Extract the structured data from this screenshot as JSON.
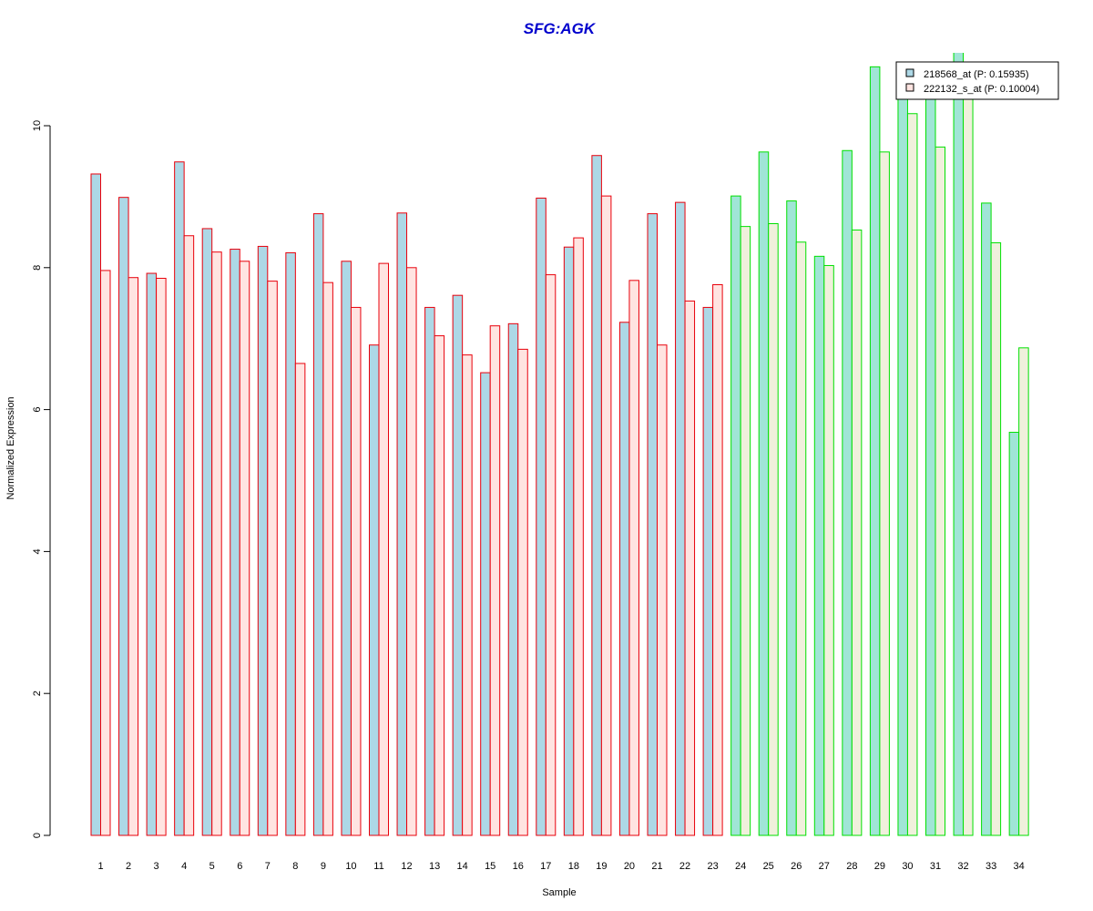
{
  "chart_data": {
    "type": "bar",
    "title": "SFG:AGK",
    "xlabel": "Sample",
    "ylabel": "Normalized Expression",
    "ylim": [
      0,
      11
    ],
    "yticks": [
      "0",
      "2",
      "4",
      "6",
      "8",
      "10"
    ],
    "categories": [
      "1",
      "2",
      "3",
      "4",
      "5",
      "6",
      "7",
      "8",
      "9",
      "10",
      "11",
      "12",
      "13",
      "14",
      "15",
      "16",
      "17",
      "18",
      "19",
      "20",
      "21",
      "22",
      "23",
      "24",
      "25",
      "26",
      "27",
      "28",
      "29",
      "30",
      "31",
      "32",
      "33",
      "34"
    ],
    "groups": [
      {
        "from_index": 0,
        "to_index": 22,
        "border_color": "#e8000b"
      },
      {
        "from_index": 23,
        "to_index": 33,
        "border_color": "#00e000"
      }
    ],
    "series": [
      {
        "name": "218568_at (P: 0.15935)",
        "fill_group1": "#add8e6",
        "fill_group2": "#a0e5d6",
        "values": [
          9.32,
          8.99,
          7.92,
          9.49,
          8.55,
          8.26,
          8.3,
          8.21,
          8.76,
          8.09,
          6.91,
          8.77,
          7.44,
          7.61,
          6.52,
          7.21,
          8.98,
          8.29,
          9.58,
          7.23,
          8.76,
          8.92,
          7.44,
          9.01,
          9.63,
          8.94,
          8.16,
          9.65,
          10.83,
          10.52,
          10.78,
          11.05,
          8.91,
          5.68
        ]
      },
      {
        "name": "222132_s_at (P: 0.10004)",
        "fill_group1": "#ffe4e1",
        "fill_group2": "#f0f0dc",
        "values": [
          7.96,
          7.86,
          7.85,
          8.45,
          8.22,
          8.09,
          7.81,
          6.65,
          7.79,
          7.44,
          8.06,
          8.0,
          7.04,
          6.77,
          7.18,
          6.85,
          7.9,
          8.42,
          9.01,
          7.82,
          6.91,
          7.53,
          7.76,
          8.58,
          8.62,
          8.36,
          8.03,
          8.53,
          9.63,
          10.17,
          9.7,
          10.82,
          8.35,
          6.87
        ]
      }
    ],
    "legend": "top-right"
  }
}
